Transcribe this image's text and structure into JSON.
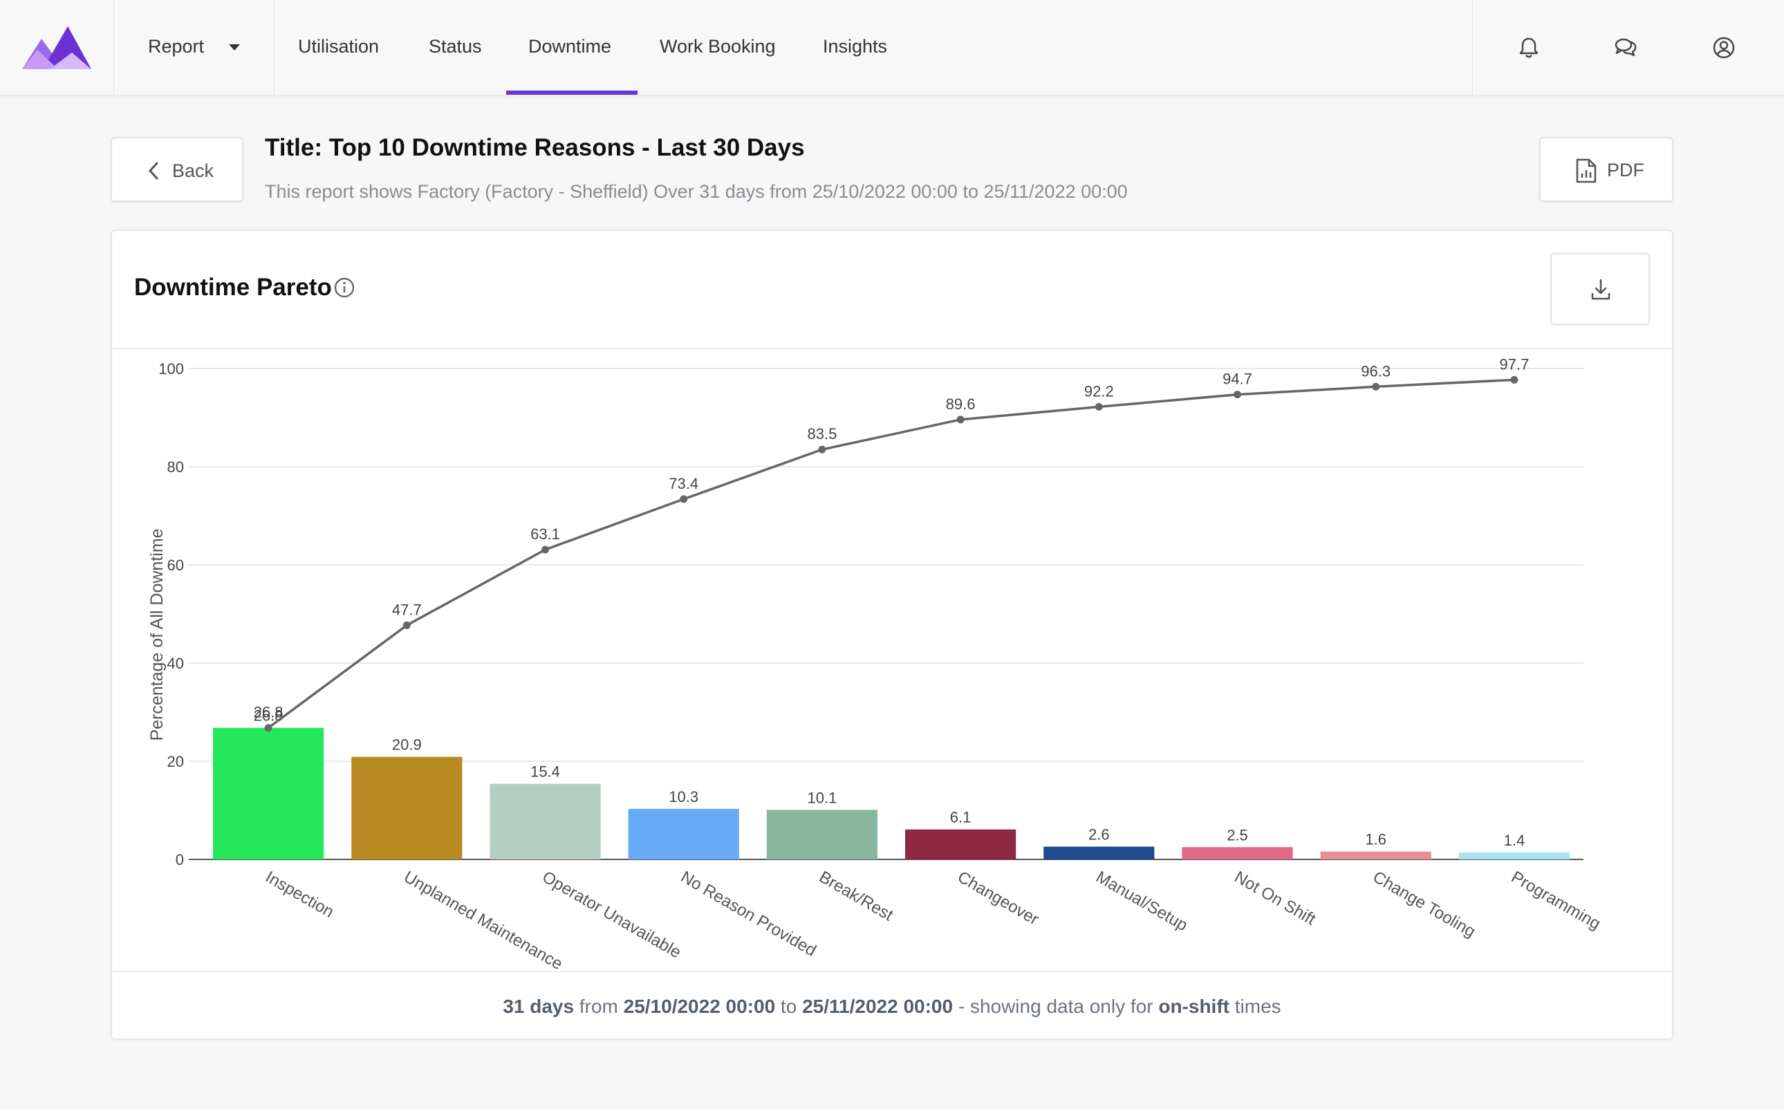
{
  "nav": {
    "report_label": "Report",
    "tabs": [
      {
        "label": "Utilisation",
        "active": false
      },
      {
        "label": "Status",
        "active": false
      },
      {
        "label": "Downtime",
        "active": true
      },
      {
        "label": "Work Booking",
        "active": false
      },
      {
        "label": "Insights",
        "active": false
      }
    ],
    "icons": [
      "bell-icon",
      "chat-icon",
      "user-icon"
    ],
    "accent_color": "#6c31d3"
  },
  "header": {
    "back_label": "Back",
    "title": "Title: Top 10 Downtime Reasons - Last 30 Days",
    "subtitle": "This report shows Factory (Factory - Sheffield) Over 31 days from 25/10/2022 00:00 to 25/11/2022 00:00",
    "pdf_label": "PDF"
  },
  "card": {
    "title": "Downtime Pareto",
    "footer": {
      "days": "31 days",
      "from_word": " from ",
      "start": "25/10/2022 00:00",
      "to_word": " to ",
      "end": "25/11/2022 00:00",
      "middle": " - showing data only for ",
      "shift": "on-shift",
      "tail": " times"
    }
  },
  "chart_data": {
    "type": "bar",
    "ylabel": "Percentage of All Downtime",
    "ylim": [
      0,
      100
    ],
    "yticks": [
      0,
      20,
      40,
      60,
      80,
      100
    ],
    "grid": true,
    "categories": [
      "Inspection",
      "Unplanned Maintenance",
      "Operator Unavailable",
      "No Reason Provided",
      "Break/Rest",
      "Changeover",
      "Manual/Setup",
      "Not On Shift",
      "Change Tooling",
      "Programming"
    ],
    "series": [
      {
        "type": "bar",
        "values": [
          26.8,
          20.9,
          15.4,
          10.3,
          10.1,
          6.1,
          2.6,
          2.5,
          1.6,
          1.4
        ],
        "colors": [
          "#24e85a",
          "#b78b22",
          "#b2cfc1",
          "#67aaf6",
          "#8ab69d",
          "#8e2841",
          "#1d4b8d",
          "#e36886",
          "#e88e9a",
          "#a8e4f2"
        ]
      },
      {
        "type": "line",
        "values": [
          26.8,
          47.7,
          63.1,
          73.4,
          83.5,
          89.6,
          92.2,
          94.7,
          96.3,
          97.7
        ],
        "color": "#666666"
      }
    ]
  }
}
